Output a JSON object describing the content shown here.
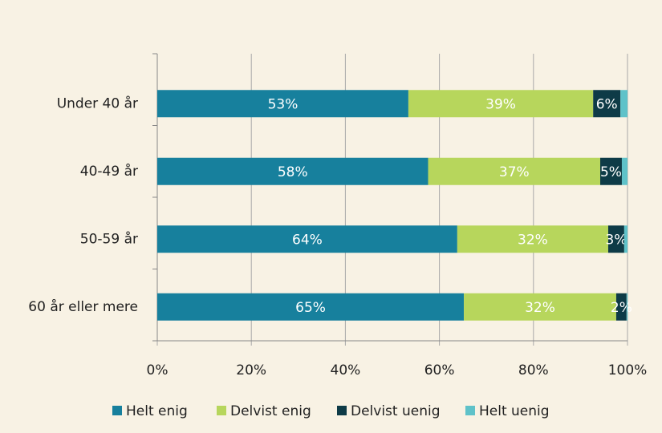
{
  "chart_data": {
    "type": "stacked-barh",
    "categories": [
      "Under 40 år",
      "40-49 år",
      "50-59 år",
      "60 år eller mere"
    ],
    "series": [
      {
        "name": "Helt enig",
        "color": "#17809d",
        "values": [
          53.4,
          57.6,
          63.8,
          65.2
        ],
        "value_labels": [
          "53%",
          "58%",
          "64%",
          "65%"
        ]
      },
      {
        "name": "Delvist enig",
        "color": "#b7d65c",
        "values": [
          39.3,
          36.6,
          32.1,
          32.4
        ],
        "value_labels": [
          "39%",
          "37%",
          "32%",
          "32%"
        ]
      },
      {
        "name": "Delvist uenig",
        "color": "#0e3b47",
        "values": [
          5.8,
          4.6,
          3.4,
          2.2
        ],
        "value_labels": [
          "6%",
          "5%",
          "3%",
          "2%"
        ]
      },
      {
        "name": "Helt uenig",
        "color": "#5fc2c9",
        "values": [
          1.5,
          1.2,
          0.7,
          0.2
        ]
      }
    ],
    "xlim": [
      0,
      100
    ],
    "xticks": [
      {
        "value": 0,
        "label": "0%"
      },
      {
        "value": 20,
        "label": "20%"
      },
      {
        "value": 40,
        "label": "40%"
      },
      {
        "value": 60,
        "label": "60%"
      },
      {
        "value": 80,
        "label": "80%"
      },
      {
        "value": 100,
        "label": "100%"
      }
    ],
    "grid": true,
    "legend": "bottom"
  }
}
